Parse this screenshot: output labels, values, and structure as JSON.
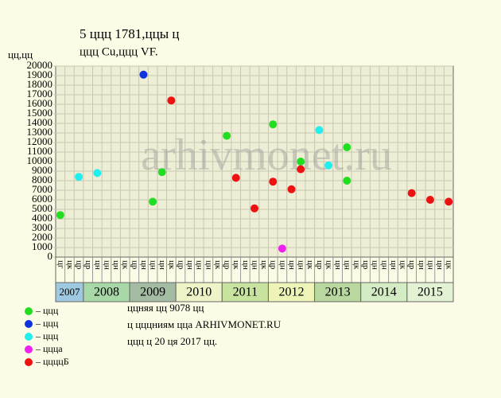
{
  "chart_data": {
    "type": "scatter",
    "title": "5 ццц 1781,ццы ц",
    "subtitle": "ццц Cu,ццц VF.",
    "y_label": "цц,цц",
    "watermark": "arhivmonet.ru",
    "categories": [
      "цг",
      "цк",
      "цр",
      "цр",
      "цн",
      "цн",
      "цн",
      "цк",
      "цр",
      "цн",
      "цн",
      "цн",
      "цк",
      "цр",
      "цн",
      "цн",
      "цн",
      "цк",
      "цр",
      "цк",
      "цн",
      "цн",
      "цк",
      "цр",
      "цн",
      "цн",
      "цн",
      "цк",
      "цр",
      "цк",
      "цн",
      "цн",
      "цк",
      "цр",
      "цн",
      "цн",
      "цн",
      "цк",
      "цр",
      "цн",
      "цн",
      "цн",
      "цк"
    ],
    "years": [
      "2007",
      "2008",
      "2009",
      "2010",
      "2011",
      "2012",
      "2013",
      "2014",
      "2015"
    ],
    "year_colors": [
      "#9fc9e0",
      "#a8d8a8",
      "#a3bca3",
      "#eef4c8",
      "#c8e2a0",
      "#eef4b8",
      "#b8d8a0",
      "#d4ecc4",
      "#e4f2d4"
    ],
    "ylim": [
      0,
      20000
    ],
    "yticks": [
      0,
      1000,
      2000,
      3000,
      4000,
      5000,
      6000,
      7000,
      8000,
      9000,
      10000,
      11000,
      12000,
      13000,
      14000,
      15000,
      16000,
      17000,
      18000,
      19000,
      20000
    ],
    "grid": true,
    "series": [
      {
        "name": "– ццц",
        "color": "#22dd22",
        "x": [
          0,
          18,
          10,
          11,
          23,
          26,
          31,
          31
        ],
        "values": [
          4400,
          12700,
          5800,
          8900,
          13900,
          10000,
          11500,
          8000
        ]
      },
      {
        "name": "– ццц",
        "color": "#1133dd",
        "x": [
          9
        ],
        "values": [
          19100
        ]
      },
      {
        "name": "– ццц",
        "color": "#22eeee",
        "x": [
          2,
          4,
          28,
          29
        ],
        "values": [
          8400,
          8800,
          13300,
          9600
        ]
      },
      {
        "name": "– ццца",
        "color": "#ee22ee",
        "x": [
          24
        ],
        "values": [
          900
        ]
      },
      {
        "name": "– ццццБ",
        "color": "#ee1111",
        "x": [
          12,
          19,
          21,
          23,
          25,
          26,
          38,
          40,
          42
        ],
        "values": [
          16400,
          8300,
          5100,
          7900,
          7100,
          9200,
          6700,
          6000,
          5800
        ]
      }
    ],
    "notes": [
      "ццняя цц 9078 цц",
      "ц цццниям цца ARHIVMONET.RU",
      "ццц ц 20 ця 2017 цц."
    ]
  }
}
